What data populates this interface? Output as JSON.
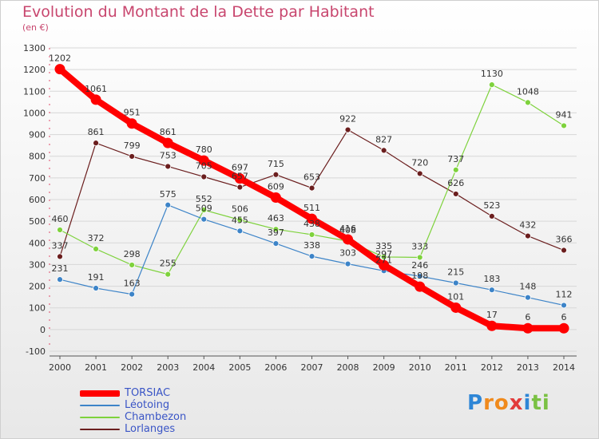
{
  "chart_data": {
    "type": "line",
    "title": "Evolution du Montant de la Dette par Habitant",
    "unit_label": "(en €)",
    "xlabel": "",
    "ylabel": "",
    "ylim": [
      -100,
      1300
    ],
    "yticks": [
      -100,
      0,
      100,
      200,
      300,
      400,
      500,
      600,
      700,
      800,
      900,
      1000,
      1100,
      1200,
      1300
    ],
    "x": [
      "2000",
      "2001",
      "2002",
      "2003",
      "2004",
      "2005",
      "2006",
      "2007",
      "2008",
      "2009",
      "2010",
      "2011",
      "2012",
      "2013",
      "2014"
    ],
    "grid": "horizontal",
    "legend_position": "bottom-left",
    "series": [
      {
        "name": "Lorlanges",
        "color": "#6b1e1e",
        "width": 1.2,
        "values": [
          337,
          861,
          799,
          753,
          705,
          657,
          715,
          653,
          922,
          827,
          720,
          626,
          523,
          432,
          366
        ],
        "labels": [
          "337",
          "861",
          "799",
          "753",
          "705",
          "657",
          "715",
          "653",
          "922",
          "827",
          "720",
          "626",
          "523",
          "432",
          "366"
        ]
      },
      {
        "name": "Chambezon",
        "color": "#7ed23c",
        "width": 1.2,
        "values": [
          460,
          372,
          298,
          255,
          552,
          506,
          463,
          438,
          408,
          335,
          333,
          737,
          1130,
          1048,
          941
        ],
        "labels": [
          "460",
          "372",
          "298",
          "255",
          "552",
          "506",
          "463",
          "438",
          "408",
          "335",
          "333",
          "737",
          "1130",
          "1048",
          "941"
        ]
      },
      {
        "name": "Léotoing",
        "color": "#3d84c8",
        "width": 1.2,
        "values": [
          231,
          191,
          163,
          575,
          509,
          455,
          397,
          338,
          303,
          271,
          246,
          215,
          183,
          148,
          112
        ],
        "labels": [
          "231",
          "191",
          "163",
          "575",
          "509",
          "455",
          "397",
          "338",
          "303",
          "271",
          "246",
          "215",
          "183",
          "148",
          "112"
        ]
      },
      {
        "name": "TORSIAC",
        "color": "#ff0000",
        "width": 8,
        "values": [
          1202,
          1061,
          951,
          861,
          780,
          697,
          609,
          511,
          416,
          297,
          198,
          101,
          17,
          6,
          6
        ],
        "labels": [
          "1202",
          "1061",
          "951",
          "861",
          "780",
          "697",
          "609",
          "511",
          "416",
          "297",
          "198",
          "101",
          "17",
          "6",
          "6"
        ]
      }
    ]
  },
  "legend": {
    "items": [
      {
        "label": "TORSIAC",
        "color": "#ff0000",
        "height": 8
      },
      {
        "label": "Léotoing",
        "color": "#3d84c8",
        "height": 2
      },
      {
        "label": "Chambezon",
        "color": "#7ed23c",
        "height": 2
      },
      {
        "label": "Lorlanges",
        "color": "#6b1e1e",
        "height": 2
      }
    ]
  },
  "brand": {
    "logo_letters": [
      "P",
      "r",
      "o",
      "x",
      "i",
      "t",
      "i"
    ],
    "logo_colors": [
      "#2e86d6",
      "#f08a1c",
      "#f08a1c",
      "#e23b3b",
      "#2e86d6",
      "#7ac143",
      "#7ac143"
    ]
  }
}
